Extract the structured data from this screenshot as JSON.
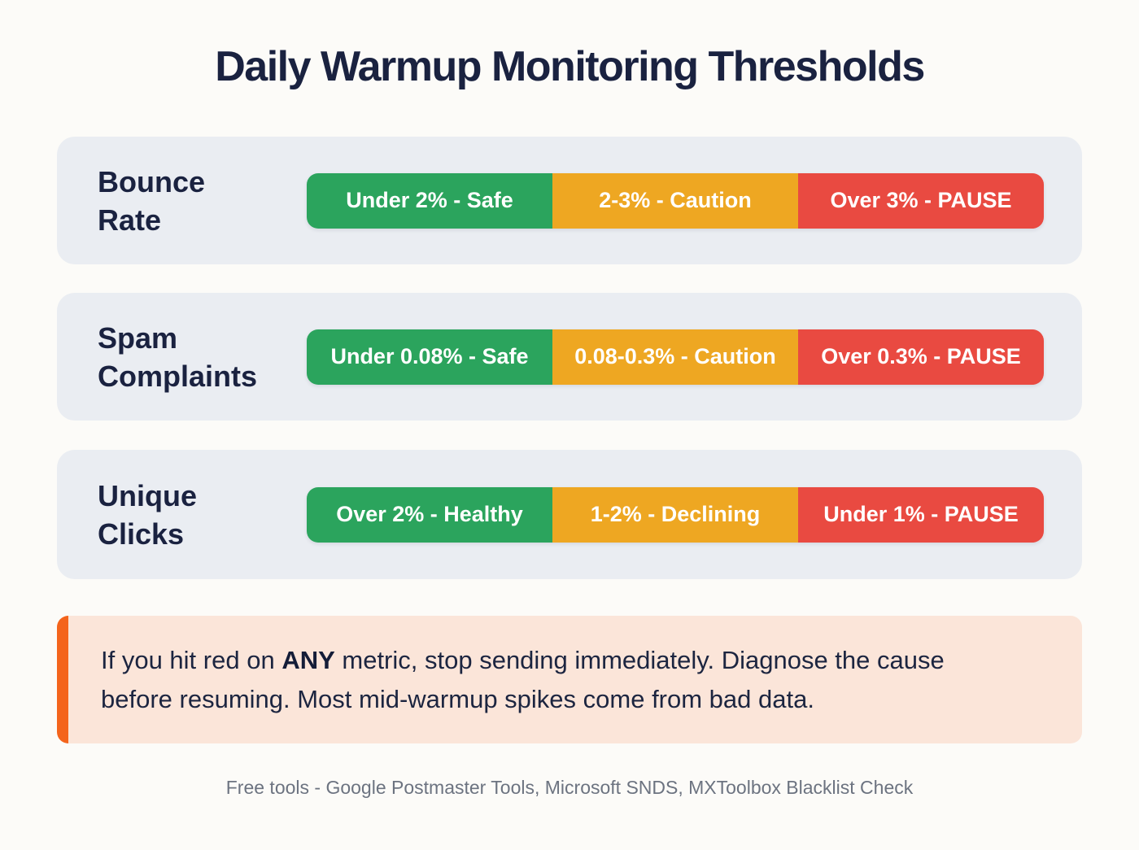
{
  "page": {
    "title": "Daily Warmup Monitoring Thresholds"
  },
  "colors": {
    "page_bg": "#FCFBF8",
    "row_bg": "#EAEDF2",
    "navy_text": "#1A2240",
    "safe": "#2BA45D",
    "caution": "#EEA722",
    "pause": "#E94A41",
    "callout_bg": "#FBE5D9",
    "callout_accent": "#F4641C",
    "footer_text": "#6C7380"
  },
  "rows": [
    {
      "label": "Bounce\nRate",
      "segments": [
        {
          "text": "Under 2% - Safe",
          "status": "safe"
        },
        {
          "text": "2-3% - Caution",
          "status": "caution"
        },
        {
          "text": "Over 3% - PAUSE",
          "status": "pause"
        }
      ]
    },
    {
      "label": "Spam\nComplaints",
      "segments": [
        {
          "text": "Under 0.08% - Safe",
          "status": "safe"
        },
        {
          "text": "0.08-0.3% - Caution",
          "status": "caution"
        },
        {
          "text": "Over 0.3% - PAUSE",
          "status": "pause"
        }
      ]
    },
    {
      "label": "Unique\nClicks",
      "segments": [
        {
          "text": "Over 2% - Healthy",
          "status": "safe"
        },
        {
          "text": "1-2% - Declining",
          "status": "caution"
        },
        {
          "text": "Under 1% - PAUSE",
          "status": "pause"
        }
      ]
    }
  ],
  "callout": {
    "text_before": "If you hit red on ",
    "text_bold": "ANY",
    "text_after": " metric, stop sending immediately. Diagnose the cause before resuming. Most mid-warmup spikes come from bad data."
  },
  "footer": {
    "note": "Free tools - Google Postmaster Tools, Microsoft SNDS, MXToolbox Blacklist Check"
  }
}
